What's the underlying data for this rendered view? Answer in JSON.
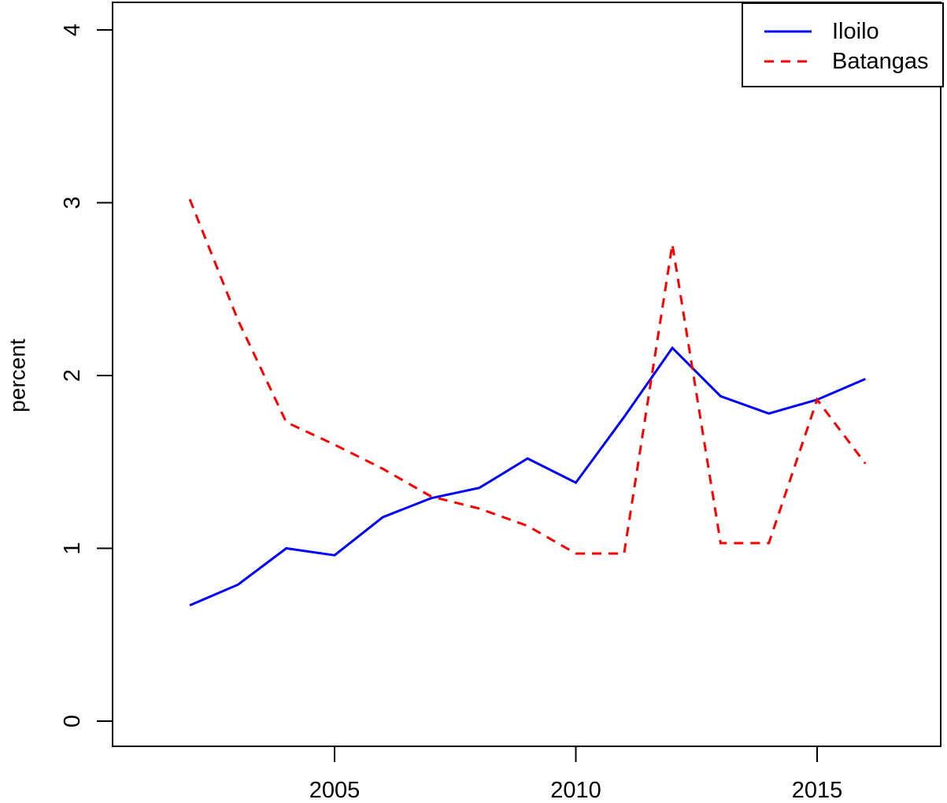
{
  "figure": {
    "background": "#ffffff",
    "axis_color": "#000000"
  },
  "chart_data": {
    "type": "line",
    "title": "",
    "xlabel": "",
    "ylabel": "percent",
    "x": [
      2002,
      2003,
      2004,
      2005,
      2006,
      2007,
      2008,
      2009,
      2010,
      2011,
      2012,
      2013,
      2014,
      2015,
      2016
    ],
    "series": [
      {
        "name": "Iloilo",
        "color": "#0000ff",
        "style": "solid",
        "values": [
          0.67,
          0.79,
          1.0,
          0.96,
          1.18,
          1.29,
          1.35,
          1.52,
          1.38,
          1.76,
          2.16,
          1.88,
          1.78,
          1.86,
          1.98
        ]
      },
      {
        "name": "Batangas",
        "color": "#ff0000",
        "style": "dashed",
        "values": [
          3.02,
          2.32,
          1.73,
          1.6,
          1.46,
          1.3,
          1.23,
          1.13,
          0.97,
          0.97,
          2.76,
          1.03,
          1.03,
          1.86,
          1.49
        ]
      }
    ],
    "xlim": [
      2002,
      2016
    ],
    "ylim": [
      0,
      4
    ],
    "x_ticks": [
      2005,
      2010,
      2015
    ],
    "y_ticks": [
      0,
      1,
      2,
      3,
      4
    ],
    "grid": false,
    "legend_position": "top-right"
  }
}
